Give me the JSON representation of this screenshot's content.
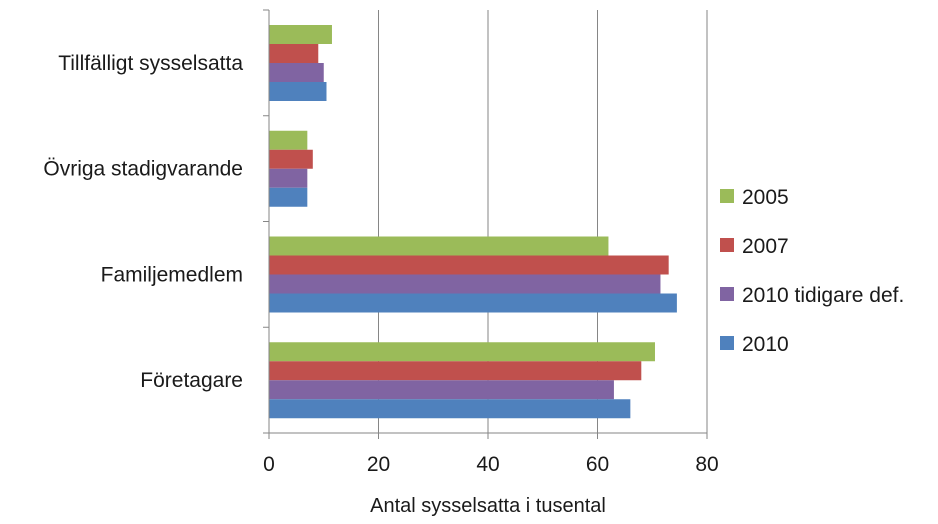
{
  "chart_data": {
    "type": "bar",
    "orientation": "horizontal",
    "categories": [
      "Tillfälligt sysselsatta",
      "Övriga stadigvarande",
      "Familjemedlem",
      "Företagare"
    ],
    "series": [
      {
        "name": "2005",
        "color": "#9BBB59",
        "values": [
          11.5,
          7,
          62,
          70.5
        ]
      },
      {
        "name": "2007",
        "color": "#C0504D",
        "values": [
          9,
          8,
          73,
          68
        ]
      },
      {
        "name": "2010 tidigare def.",
        "color": "#8064A2",
        "values": [
          10,
          7,
          71.5,
          63
        ]
      },
      {
        "name": "2010",
        "color": "#4F81BD",
        "values": [
          10.5,
          7,
          74.5,
          66
        ]
      }
    ],
    "xlabel": "Antal sysselsatta i tusental",
    "ylabel": "",
    "xlim": [
      0,
      80
    ],
    "xticks": [
      0,
      20,
      40,
      60,
      80
    ],
    "xtick_labels": [
      "0",
      "20",
      "40",
      "60",
      "80"
    ],
    "grid": true,
    "legend": "right"
  }
}
